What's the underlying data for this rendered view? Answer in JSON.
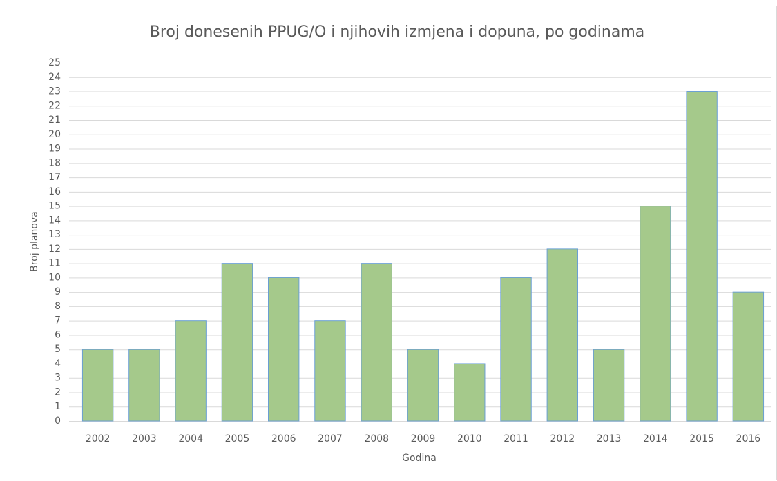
{
  "chart_data": {
    "type": "bar",
    "title": "Broj donesenih PPUG/O i njihovih izmjena i dopuna, po godinama",
    "x_label": "Godina",
    "y_label": "Broj planova",
    "categories": [
      "2002",
      "2003",
      "2004",
      "2005",
      "2006",
      "2007",
      "2008",
      "2009",
      "2010",
      "2011",
      "2012",
      "2013",
      "2014",
      "2015",
      "2016"
    ],
    "values": [
      5,
      5,
      7,
      11,
      10,
      7,
      11,
      5,
      4,
      10,
      12,
      5,
      15,
      23,
      9
    ],
    "color": "#a5c98b",
    "ylim": [
      0,
      25
    ],
    "yticks": [
      0,
      1,
      2,
      3,
      4,
      5,
      6,
      7,
      8,
      9,
      10,
      11,
      12,
      13,
      14,
      15,
      16,
      17,
      18,
      19,
      20,
      21,
      22,
      23,
      24,
      25
    ],
    "grid": true
  }
}
